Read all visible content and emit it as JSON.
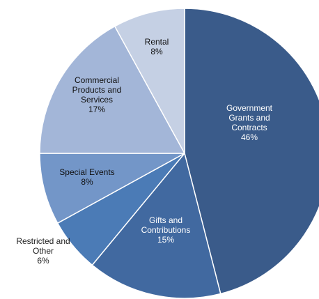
{
  "chart_data": {
    "type": "pie",
    "title": "",
    "categories": [
      "Government Grants and Contracts",
      "Gifts and Contributions",
      "Restricted and Other",
      "Special Events",
      "Commercial Products and Services",
      "Rental"
    ],
    "values": [
      46,
      15,
      6,
      8,
      17,
      8
    ],
    "value_labels": [
      "46%",
      "15%",
      "6%",
      "8%",
      "17%",
      "8%"
    ],
    "colors": [
      "#3a5b8a",
      "#4169a0",
      "#4b7bb6",
      "#7396c8",
      "#a3b6d8",
      "#c5d0e4"
    ],
    "start_angle_deg": 0,
    "direction": "clockwise",
    "legend": "none"
  }
}
